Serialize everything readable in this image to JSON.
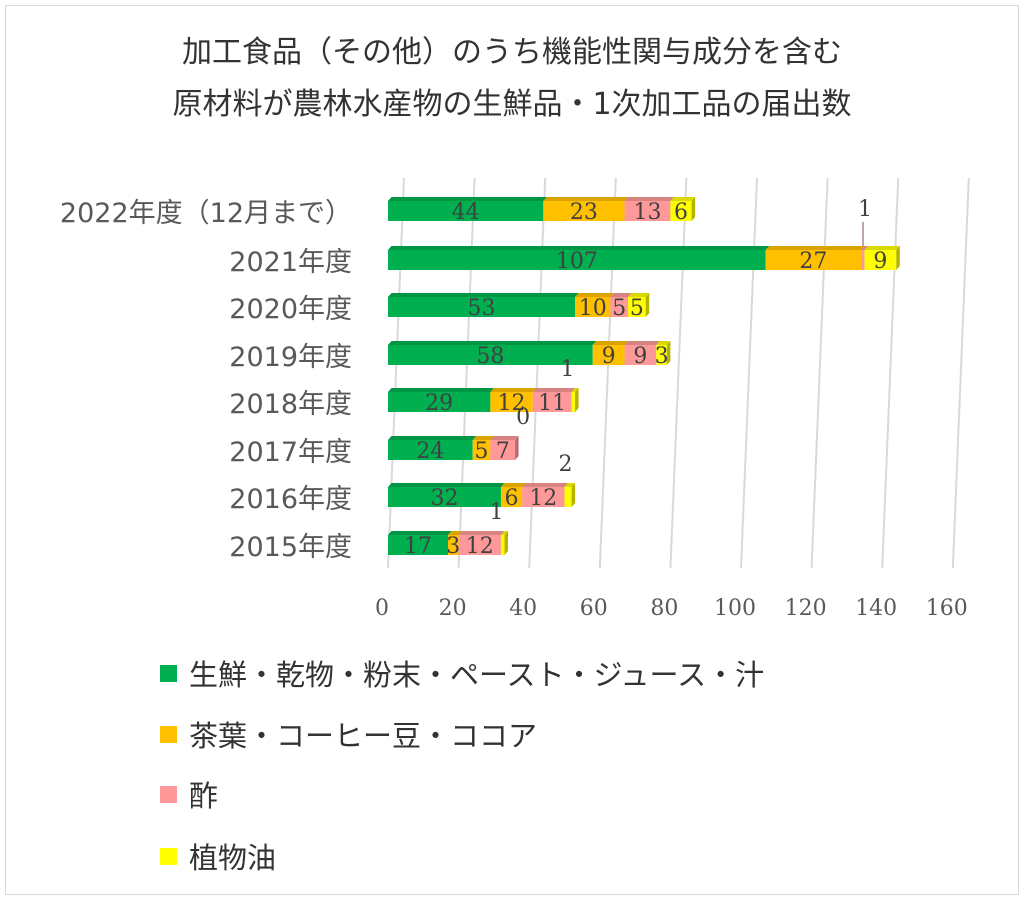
{
  "chart_data": {
    "type": "bar",
    "orientation": "horizontal",
    "stacked": true,
    "title": "加工食品（その他）のうち機能性関与成分を含む",
    "subtitle": "原材料が農林水産物の生鮮品・1次加工品の届出数",
    "categories": [
      "2022年度（12月まで）",
      "2021年度",
      "2020年度",
      "2019年度",
      "2018年度",
      "2017年度",
      "2016年度",
      "2015年度"
    ],
    "series": [
      {
        "name": "生鮮・乾物・粉末・ペースト・ジュース・汁",
        "color": "#00b050",
        "values": [
          44,
          107,
          53,
          58,
          29,
          24,
          32,
          17
        ]
      },
      {
        "name": "茶葉・コーヒー豆・ココア",
        "color": "#ffc000",
        "values": [
          23,
          27,
          10,
          9,
          12,
          5,
          6,
          3
        ]
      },
      {
        "name": "酢",
        "color": "#ff9999",
        "values": [
          13,
          1,
          5,
          9,
          11,
          7,
          12,
          12
        ]
      },
      {
        "name": "植物油",
        "color": "#ffff00",
        "values": [
          6,
          9,
          5,
          3,
          1,
          0,
          2,
          1
        ]
      }
    ],
    "xlim": [
      0,
      160
    ],
    "xticks": [
      "0",
      "20",
      "40",
      "60",
      "80",
      "100",
      "120",
      "140",
      "160"
    ],
    "grid": true,
    "legend_position": "bottom"
  }
}
